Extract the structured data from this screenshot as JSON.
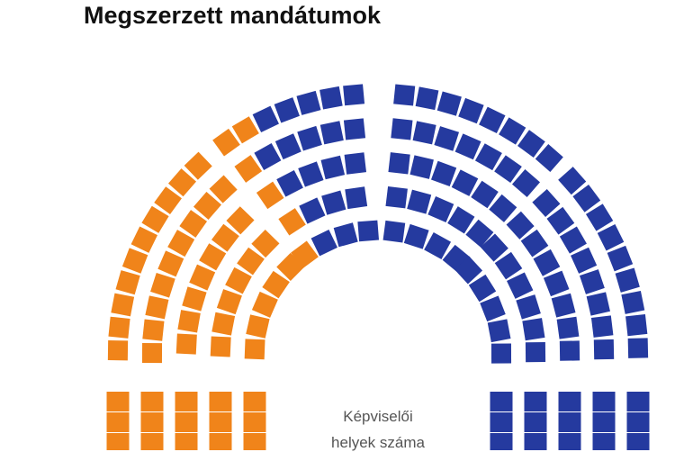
{
  "chart_data": {
    "type": "parliament",
    "title": "Megszerzett mandátumok",
    "center_label": [
      "Képviselői",
      "helyek száma"
    ],
    "parties": [
      {
        "color": "#f0841a",
        "seats": 43
      },
      {
        "color": "#253a9f",
        "seats": 150
      }
    ],
    "rows": 5
  }
}
